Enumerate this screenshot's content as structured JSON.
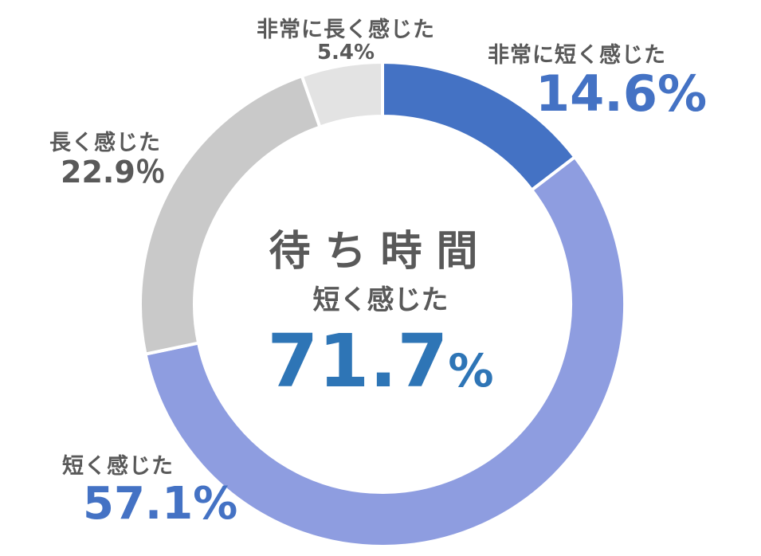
{
  "chart_data": {
    "type": "pie",
    "hole": true,
    "center": {
      "title": "待ち時間",
      "subtitle": "短く感じた",
      "value": "71.7",
      "unit": "%"
    },
    "slices": [
      {
        "label": "非常に短く感じた",
        "value": 14.6,
        "display": "14.6%",
        "color": "#4472C4"
      },
      {
        "label": "短く感じた",
        "value": 57.1,
        "display": "57.1%",
        "color": "#8E9DE0"
      },
      {
        "label": "長く感じた",
        "value": 22.9,
        "display": "22.9％",
        "color": "#C9C9C9"
      },
      {
        "label": "非常に長く感じた",
        "value": 5.4,
        "display": "5.4%",
        "color": "#E3E3E3"
      }
    ]
  }
}
